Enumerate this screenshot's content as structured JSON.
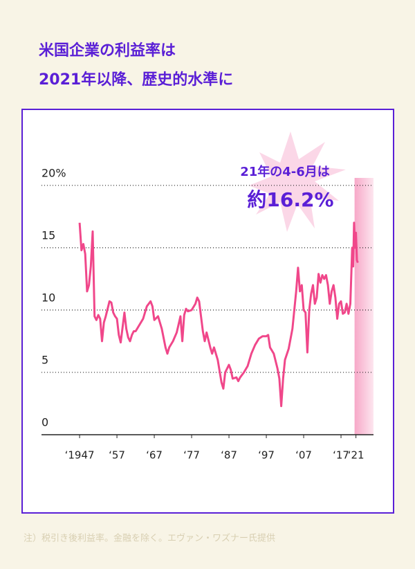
{
  "chart_data": {
    "type": "line",
    "title": [
      "米国企業の利益率は",
      "2021年以降、歴史的水準に"
    ],
    "annotations": [
      "21年の4-6月は",
      "約16.2%"
    ],
    "note": "注）税引き後利益率。金融を除く。エヴァン・ワズナー氏提供",
    "x": [
      1947,
      1947.5,
      1948,
      1948.5,
      1949,
      1949.5,
      1950,
      1950.5,
      1951,
      1951.5,
      1952,
      1952.5,
      1953,
      1953.5,
      1954,
      1955,
      1955.5,
      1956,
      1956.5,
      1957,
      1957.5,
      1958,
      1958.5,
      1959,
      1959.5,
      1960,
      1960.5,
      1961,
      1961.5,
      1962,
      1963,
      1964,
      1965,
      1966,
      1966.5,
      1967,
      1968,
      1969,
      1970,
      1970.5,
      1971,
      1972,
      1973,
      1974,
      1974.5,
      1975,
      1975.5,
      1976,
      1977,
      1978,
      1978.5,
      1979,
      1979.5,
      1980,
      1980.5,
      1981,
      1982,
      1982.5,
      1983,
      1984,
      1985,
      1985.5,
      1986,
      1986.5,
      1987,
      1987.5,
      1988,
      1989,
      1989.5,
      1990,
      1991,
      1992,
      1993,
      1994,
      1995,
      1996,
      1997,
      1997.5,
      1998,
      1999,
      2000,
      2000.5,
      2001,
      2001.5,
      2002,
      2003,
      2004,
      2004.5,
      2005,
      2005.5,
      2006,
      2006.5,
      2007,
      2007.5,
      2008,
      2008.5,
      2009,
      2009.5,
      2010,
      2010.5,
      2011,
      2011.5,
      2012,
      2012.5,
      2013,
      2013.5,
      2014,
      2014.5,
      2015,
      2015.5,
      2016,
      2016.5,
      2017,
      2017.5,
      2018,
      2018.5,
      2019,
      2019.5,
      2020,
      2020.25,
      2020.5,
      2020.75,
      2021,
      2021.25,
      2021.5
    ],
    "series": [
      {
        "name": "利益率",
        "color": "#f0478a",
        "values": [
          17,
          14.8,
          15.3,
          14.5,
          11.5,
          12,
          13.5,
          16.3,
          9.5,
          9.2,
          9.6,
          9.3,
          7.5,
          9,
          9.5,
          10.7,
          10.6,
          9.8,
          9.5,
          9.3,
          8,
          7.4,
          8.6,
          9.8,
          8.5,
          7.8,
          7.5,
          8,
          8.3,
          8.3,
          8.8,
          9.3,
          10.3,
          10.7,
          10.3,
          9.2,
          9.5,
          8.5,
          7,
          6.5,
          7,
          7.5,
          8.2,
          9.5,
          7.5,
          9.6,
          10.1,
          9.9,
          10,
          10.5,
          11,
          10.7,
          9.5,
          8.3,
          7.5,
          8.2,
          7,
          6.5,
          7,
          6,
          4.2,
          3.7,
          5,
          5.3,
          5.6,
          5.2,
          4.5,
          4.6,
          4.3,
          4.6,
          5,
          5.5,
          6.5,
          7.2,
          7.7,
          7.9,
          7.9,
          8,
          7,
          6.5,
          5.3,
          4.5,
          2.3,
          4.5,
          6,
          6.9,
          8.5,
          10,
          11.5,
          13.4,
          11.5,
          12,
          10,
          9.8,
          6.6,
          10,
          11.3,
          12,
          10.5,
          11,
          12.9,
          12.2,
          12.8,
          12.5,
          12.8,
          12,
          10.5,
          11.5,
          12,
          11,
          9.3,
          10.5,
          10.7,
          9.7,
          9.8,
          10.5,
          9.7,
          10.5,
          15,
          13.5,
          17,
          15,
          16.2,
          14,
          13.8
        ]
      }
    ],
    "xlim": [
      1936.8,
      2025.7
    ],
    "xticks": [
      {
        "value": 1947,
        "label": "‘1947"
      },
      {
        "value": 1957,
        "label": "‘57"
      },
      {
        "value": 1967,
        "label": "‘67"
      },
      {
        "value": 1977,
        "label": "‘77"
      },
      {
        "value": 1987,
        "label": "‘87"
      },
      {
        "value": 1997,
        "label": "‘97"
      },
      {
        "value": 2007,
        "label": "‘07"
      },
      {
        "value": 2017,
        "label": "‘17"
      },
      {
        "value": 2021,
        "label": "‘21"
      }
    ],
    "ylim": [
      0,
      20.6
    ],
    "yticks": [
      0,
      5,
      10,
      15,
      {
        "value": 20,
        "label": "20%"
      }
    ],
    "grid": true
  }
}
